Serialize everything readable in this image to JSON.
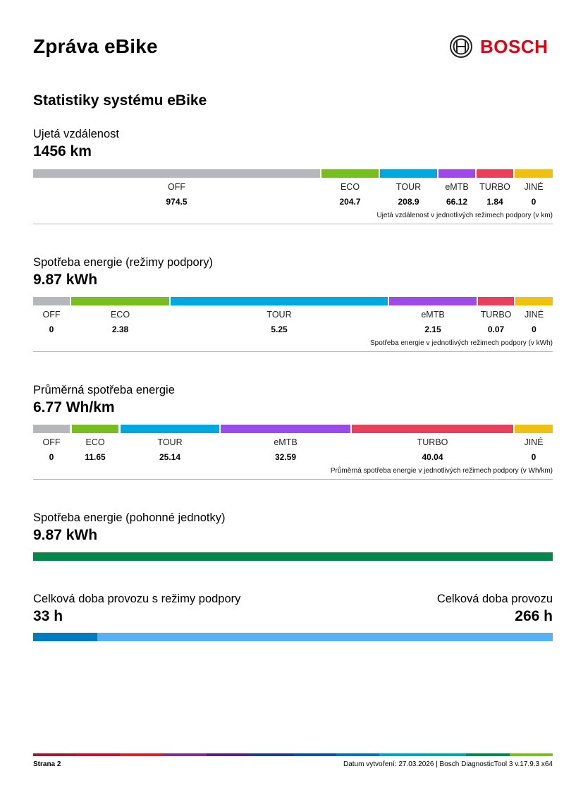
{
  "header": {
    "title": "Zpráva eBike",
    "brand": "BOSCH"
  },
  "section_title": "Statistiky systému eBike",
  "distance": {
    "label": "Ujetá vzdálenost",
    "value": "1456 km",
    "modes": [
      "OFF",
      "ECO",
      "TOUR",
      "eMTB",
      "TURBO",
      "JINÉ"
    ],
    "values": [
      "974.5",
      "204.7",
      "208.9",
      "66.12",
      "1.84",
      "0"
    ],
    "note": "Ujetá vzdálenost v jednotlivých režimech podpory (v km)"
  },
  "energy_modes": {
    "label": "Spotřeba energie (režimy podpory)",
    "value": "9.87 kWh",
    "modes": [
      "OFF",
      "ECO",
      "TOUR",
      "eMTB",
      "TURBO",
      "JINÉ"
    ],
    "values": [
      "0",
      "2.38",
      "5.25",
      "2.15",
      "0.07",
      "0"
    ],
    "note": "Spotřeba energie v jednotlivých režimech podpory (v kWh)"
  },
  "avg_energy": {
    "label": "Průměrná spotřeba energie",
    "value": "6.77 Wh/km",
    "modes": [
      "OFF",
      "ECO",
      "TOUR",
      "eMTB",
      "TURBO",
      "JINÉ"
    ],
    "values": [
      "0",
      "11.65",
      "25.14",
      "32.59",
      "40.04",
      "0"
    ],
    "note": "Průměrná spotřeba energie v jednotlivých režimech podpory (v Wh/km)"
  },
  "energy_drive": {
    "label": "Spotřeba energie (pohonné jednotky)",
    "value": "9.87 kWh"
  },
  "operation": {
    "assist_label": "Celková doba provozu s režimy podpory",
    "assist_value": "33 h",
    "total_label": "Celková doba provozu",
    "total_value": "266 h",
    "assist_hours": 33,
    "total_hours": 266
  },
  "colors": {
    "OFF": "#b4b8bd",
    "ECO": "#78be20",
    "TOUR": "#00a8e0",
    "eMTB": "#9e4ae8",
    "TURBO": "#e8405a",
    "JINÉ": "#f0c010",
    "drive": "#00884a",
    "assist_dark": "#007bc0",
    "assist_light": "#56b0f2",
    "brand_red": "#e20015"
  },
  "footer": {
    "page": "Strana 2",
    "info": "Datum vytvoření: 27.03.2026 | Bosch DiagnosticTool 3 v.17.9.3 x64"
  }
}
